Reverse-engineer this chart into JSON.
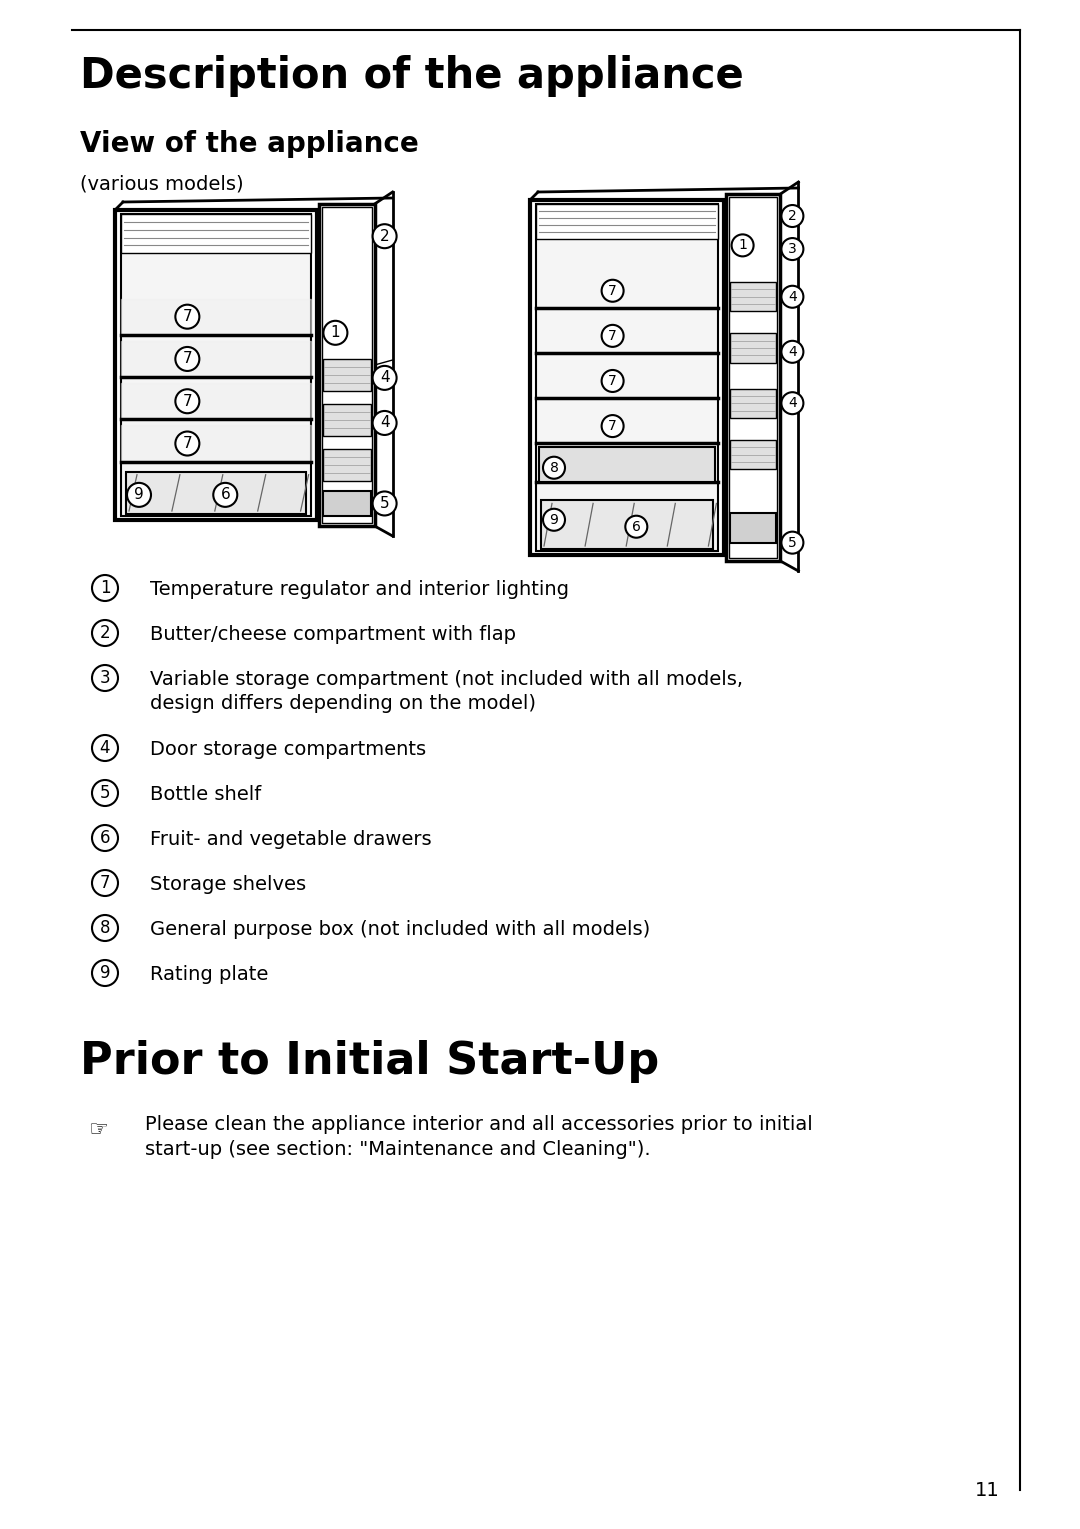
{
  "page_bg": "#ffffff",
  "title1": "Description of the appliance",
  "subtitle1": "View of the appliance",
  "subtext1": "(various models)",
  "title2": "Prior to Initial Start-Up",
  "legend_items": [
    {
      "num": "1",
      "text": "Temperature regulator and interior lighting"
    },
    {
      "num": "2",
      "text": "Butter/cheese compartment with flap"
    },
    {
      "num": "3",
      "text": "Variable storage compartment (not included with all models,\ndesign differs depending on the model)"
    },
    {
      "num": "4",
      "text": "Door storage compartments"
    },
    {
      "num": "5",
      "text": "Bottle shelf"
    },
    {
      "num": "6",
      "text": "Fruit- and vegetable drawers"
    },
    {
      "num": "7",
      "text": "Storage shelves"
    },
    {
      "num": "8",
      "text": "General purpose box (not included with all models)"
    },
    {
      "num": "9",
      "text": "Rating plate"
    }
  ],
  "note_text": "Please clean the appliance interior and all accessories prior to initial\nstart-up (see section: \"Maintenance and Cleaning\").",
  "page_number": "11"
}
